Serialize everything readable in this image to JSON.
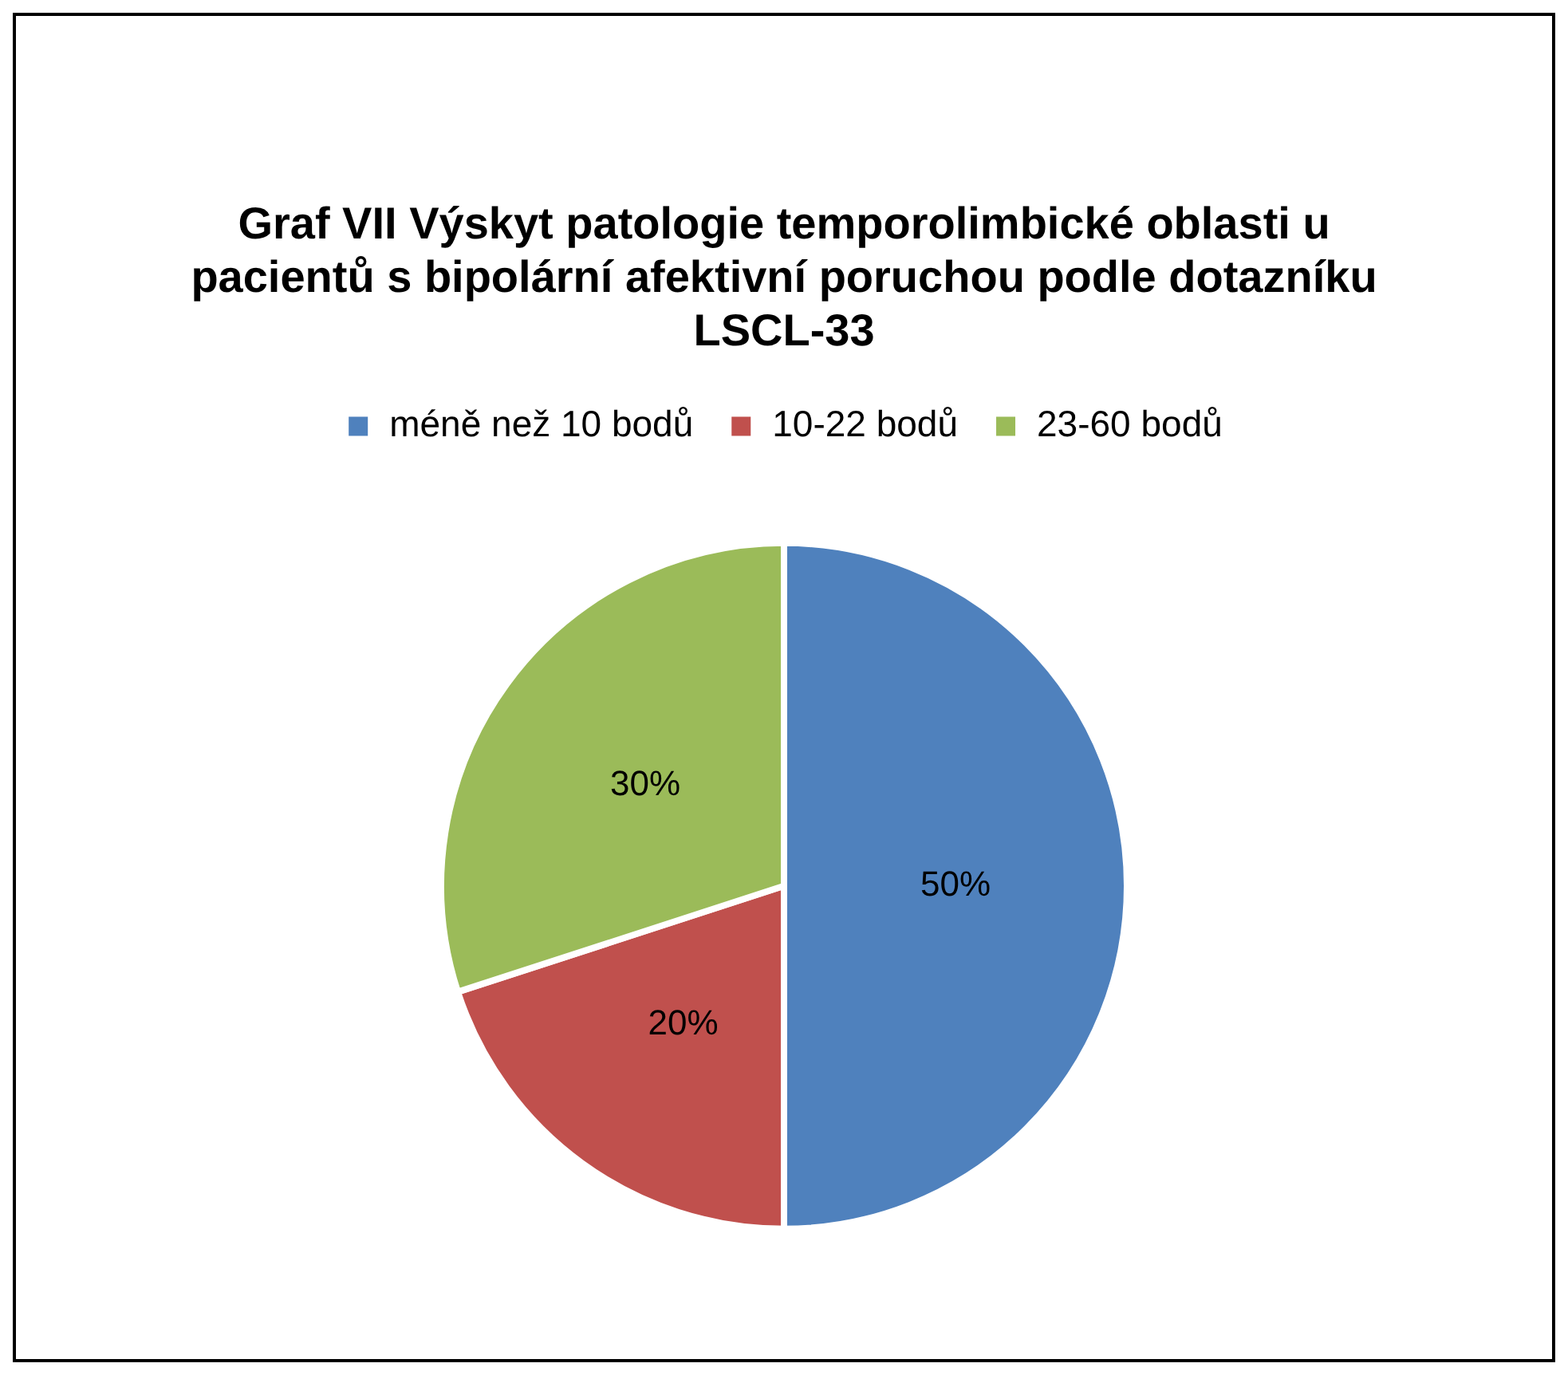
{
  "chart_data": {
    "type": "pie",
    "title": "Graf VII Výskyt patologie temporolimbické oblasti u pacientů s bipolární afektivní poruchou podle dotazníku LSCL-33",
    "categories": [
      "méně než 10 bodů",
      "10-22 bodů",
      "23-60 bodů"
    ],
    "values": [
      50,
      20,
      30
    ],
    "colors": [
      "#4f81bd",
      "#c0504d",
      "#9bbb59"
    ],
    "value_labels": [
      "50%",
      "20%",
      "30%"
    ],
    "legend": "top"
  }
}
